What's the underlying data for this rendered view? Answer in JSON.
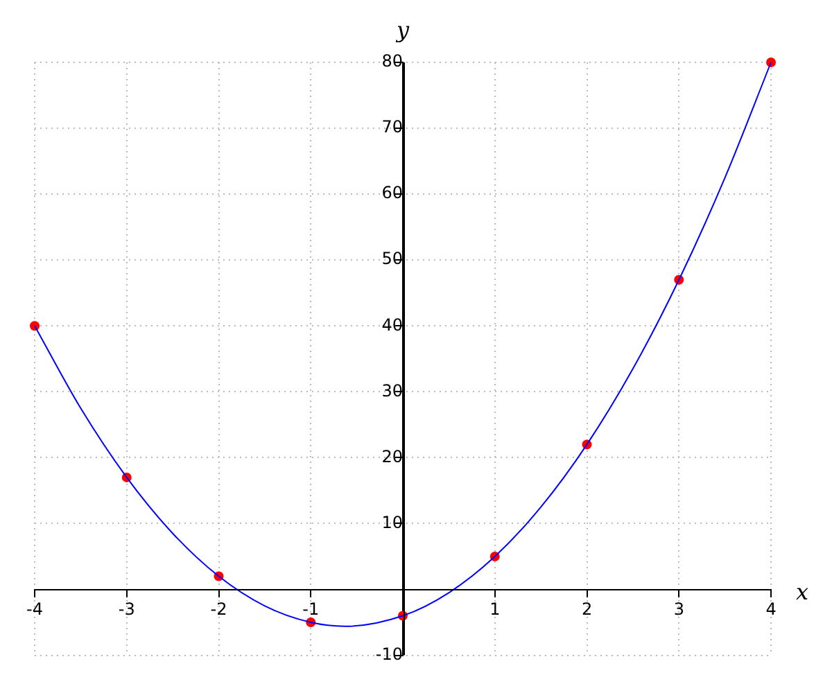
{
  "chart_data": {
    "type": "line",
    "xlabel": "x",
    "ylabel": "y",
    "xlim": [
      -4,
      4
    ],
    "ylim": [
      -10,
      80
    ],
    "xticks": [
      -4,
      -3,
      -2,
      -1,
      1,
      2,
      3,
      4
    ],
    "yticks": [
      -10,
      10,
      20,
      30,
      40,
      50,
      60,
      70,
      80
    ],
    "grid": true,
    "legend": false,
    "series": [
      {
        "marker": "none",
        "color": "#0000ff",
        "x": [
          -4,
          -3.5,
          -3,
          -2.5,
          -2,
          -1.5,
          -1,
          -0.625,
          0,
          0.5,
          1,
          1.5,
          2,
          2.5,
          3,
          3.5,
          4
        ],
        "values": [
          40,
          27.5,
          17,
          8.5,
          2,
          -2.5,
          -5,
          -5.6,
          -4,
          -0.5,
          5,
          12.5,
          22,
          33.5,
          47,
          62.5,
          80
        ]
      },
      {
        "type": "scatter",
        "marker": "circle",
        "color": "#ff0000",
        "x": [
          -4,
          -3,
          -2,
          -1,
          0,
          1,
          2,
          3,
          4
        ],
        "values": [
          40,
          17,
          2,
          -5,
          -4,
          5,
          22,
          47,
          80
        ]
      }
    ]
  }
}
